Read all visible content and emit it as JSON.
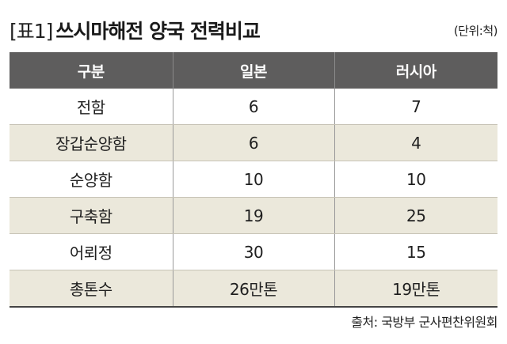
{
  "title": {
    "tag": "[표1]",
    "text": "쓰시마해전 양국 전력비교"
  },
  "unit": "(단위:척)",
  "table": {
    "headers": [
      "구분",
      "일본",
      "러시아"
    ],
    "rows": [
      [
        "전함",
        "6",
        "7"
      ],
      [
        "장갑순양함",
        "6",
        "4"
      ],
      [
        "순양함",
        "10",
        "10"
      ],
      [
        "구축함",
        "19",
        "25"
      ],
      [
        "어뢰정",
        "30",
        "15"
      ],
      [
        "총톤수",
        "26만톤",
        "19만톤"
      ]
    ]
  },
  "source": "출처: 국방부 군사편찬위원회",
  "colors": {
    "header_bg": "#5e5d5d",
    "shaded_row_bg": "#ebe8db"
  }
}
